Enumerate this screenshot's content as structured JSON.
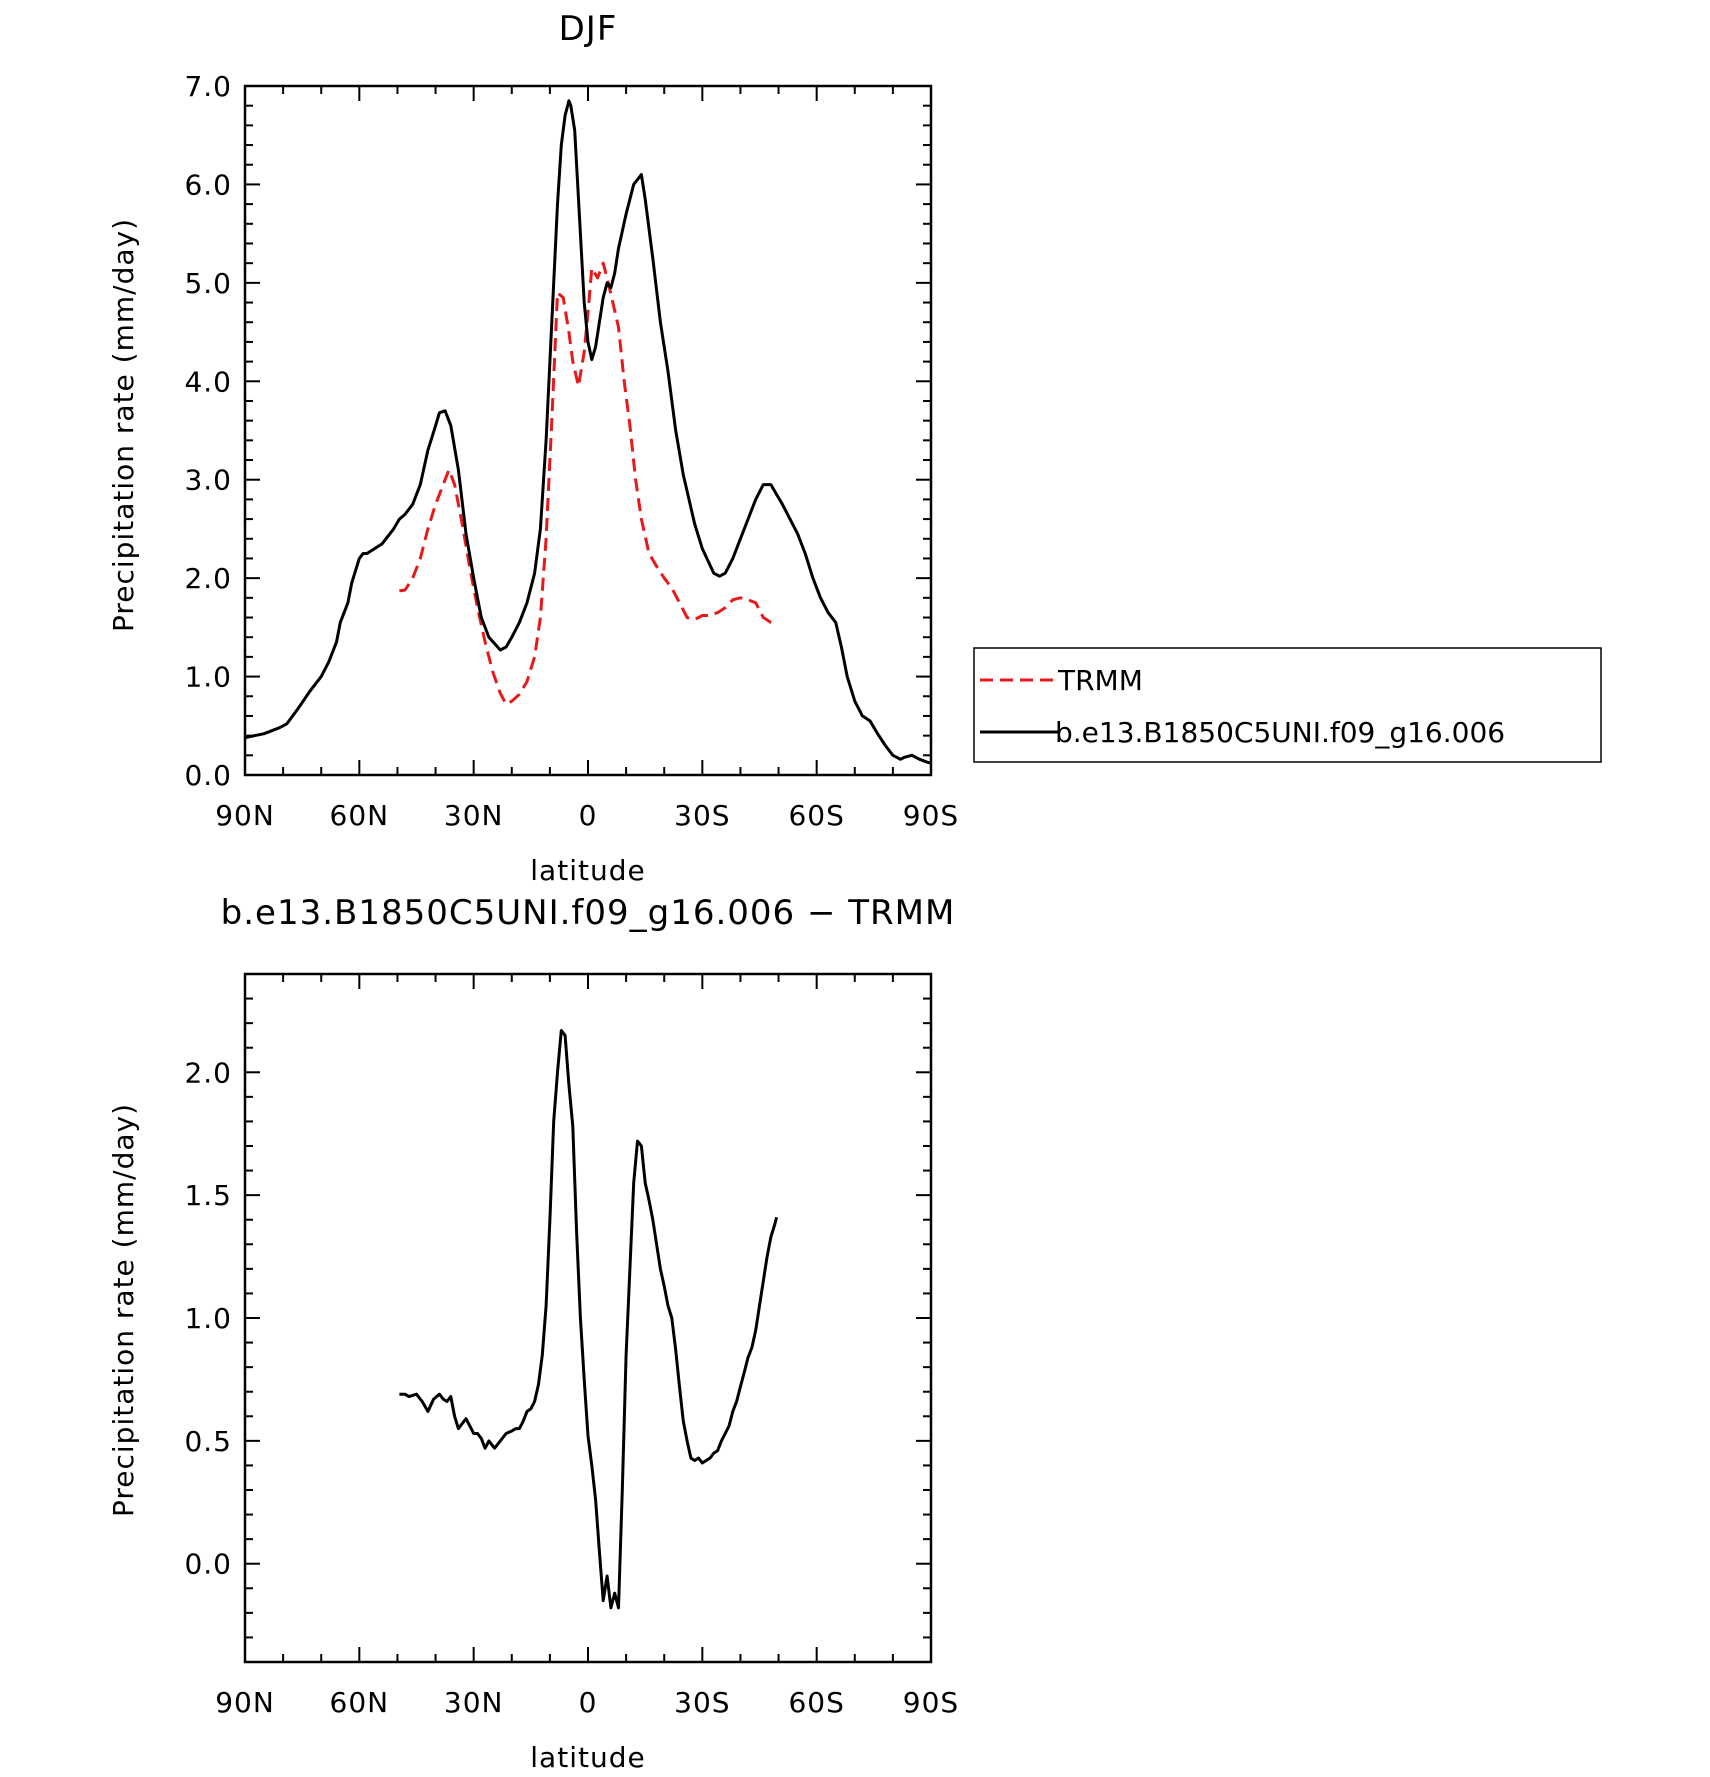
{
  "chart_data": [
    {
      "type": "line",
      "title": "DJF",
      "xlabel": "latitude",
      "ylabel": "Precipitation rate (mm/day)",
      "xlim": [
        90,
        -90
      ],
      "ylim": [
        0,
        7
      ],
      "x_tick_values": [
        90,
        60,
        30,
        0,
        -30,
        -60,
        -90
      ],
      "x_tick_labels": [
        "90N",
        "60N",
        "30N",
        "0",
        "30S",
        "60S",
        "90S"
      ],
      "y_tick_values": [
        0,
        1,
        2,
        3,
        4,
        5,
        6,
        7
      ],
      "y_tick_labels": [
        "0.0",
        "1.0",
        "2.0",
        "3.0",
        "4.0",
        "5.0",
        "6.0",
        "7.0"
      ],
      "legend_position": "right",
      "series": [
        {
          "name": "TRMM",
          "color": "#e8191b",
          "dash": "dashed",
          "x": [
            49.5,
            48,
            46,
            44,
            42,
            40,
            38,
            36.5,
            35,
            33,
            31,
            29,
            27,
            25,
            23,
            21.5,
            20,
            18,
            16,
            14,
            12.5,
            11,
            9.5,
            8,
            6.5,
            5,
            4,
            2.5,
            1,
            0,
            -1,
            -2.5,
            -4,
            -5,
            -6.5,
            -8,
            -9.5,
            -11,
            -12.5,
            -14,
            -16,
            -18,
            -20,
            -22,
            -24,
            -26,
            -28,
            -30,
            -32,
            -34,
            -36,
            -38,
            -40,
            -42,
            -44,
            -46,
            -48,
            -49.5
          ],
          "y": [
            1.87,
            1.88,
            2.0,
            2.2,
            2.5,
            2.75,
            2.95,
            3.1,
            2.95,
            2.55,
            2.1,
            1.7,
            1.35,
            1.05,
            0.83,
            0.72,
            0.75,
            0.82,
            0.95,
            1.2,
            1.6,
            2.4,
            3.6,
            4.9,
            4.85,
            4.5,
            4.2,
            3.95,
            4.3,
            4.7,
            5.15,
            5.05,
            5.2,
            5.05,
            4.8,
            4.55,
            4.0,
            3.55,
            3.0,
            2.6,
            2.25,
            2.12,
            2.0,
            1.9,
            1.75,
            1.6,
            1.58,
            1.62,
            1.62,
            1.65,
            1.7,
            1.78,
            1.8,
            1.78,
            1.75,
            1.6,
            1.55,
            1.55
          ]
        },
        {
          "name": "b.e13.B1850C5UNI.f09_g16.006",
          "color": "#000000",
          "dash": "solid",
          "x": [
            90,
            85,
            81,
            79,
            76,
            73,
            70,
            68,
            66,
            65,
            63,
            62,
            60,
            59,
            58,
            56,
            54,
            51,
            49.5,
            48,
            46,
            44,
            42,
            40,
            39,
            37.5,
            36,
            34,
            32,
            30,
            28,
            26,
            23,
            21.5,
            20,
            18,
            16,
            14,
            12.5,
            11,
            10,
            9,
            8,
            7,
            6,
            5,
            4.5,
            3.5,
            2,
            1,
            0,
            -1,
            -2,
            -3,
            -4,
            -5,
            -6,
            -7,
            -8,
            -10,
            -12,
            -14,
            -15,
            -17,
            -19,
            -21,
            -23,
            -25,
            -28,
            -30,
            -33,
            -34.5,
            -36,
            -38,
            -40,
            -42,
            -44,
            -46,
            -48,
            -49.5,
            -51,
            -53,
            -55,
            -57,
            -59,
            -61,
            -63,
            -65,
            -66.5,
            -68,
            -70,
            -72,
            -74,
            -76,
            -78,
            -80,
            -82,
            -83,
            -85,
            -87,
            -89,
            -90
          ],
          "y": [
            0.38,
            0.42,
            0.48,
            0.52,
            0.68,
            0.85,
            1.0,
            1.15,
            1.35,
            1.55,
            1.75,
            1.95,
            2.2,
            2.25,
            2.25,
            2.3,
            2.35,
            2.5,
            2.6,
            2.65,
            2.75,
            2.95,
            3.3,
            3.55,
            3.68,
            3.7,
            3.55,
            3.1,
            2.45,
            2.0,
            1.6,
            1.4,
            1.27,
            1.3,
            1.4,
            1.55,
            1.75,
            2.05,
            2.5,
            3.4,
            4.2,
            5.0,
            5.8,
            6.4,
            6.7,
            6.85,
            6.8,
            6.55,
            5.5,
            4.8,
            4.4,
            4.22,
            4.35,
            4.6,
            4.85,
            5.0,
            4.95,
            5.1,
            5.35,
            5.7,
            6.0,
            6.1,
            5.85,
            5.25,
            4.6,
            4.1,
            3.5,
            3.05,
            2.55,
            2.3,
            2.05,
            2.02,
            2.05,
            2.2,
            2.4,
            2.6,
            2.8,
            2.95,
            2.95,
            2.85,
            2.75,
            2.6,
            2.45,
            2.25,
            2.0,
            1.8,
            1.65,
            1.55,
            1.3,
            1.0,
            0.75,
            0.6,
            0.55,
            0.42,
            0.3,
            0.2,
            0.16,
            0.18,
            0.2,
            0.16,
            0.13,
            0.12
          ]
        }
      ]
    },
    {
      "type": "line",
      "title": "b.e13.B1850C5UNI.f09_g16.006 − TRMM",
      "xlabel": "latitude",
      "ylabel": "Precipitation rate (mm/day)",
      "xlim": [
        90,
        -90
      ],
      "ylim": [
        -0.4,
        2.4
      ],
      "x_tick_values": [
        90,
        60,
        30,
        0,
        -30,
        -60,
        -90
      ],
      "x_tick_labels": [
        "90N",
        "60N",
        "30N",
        "0",
        "30S",
        "60S",
        "90S"
      ],
      "y_tick_values": [
        0,
        0.5,
        1,
        1.5,
        2
      ],
      "y_tick_labels": [
        "0.0",
        "0.5",
        "1.0",
        "1.5",
        "2.0"
      ],
      "series": [
        {
          "color": "#000000",
          "dash": "solid",
          "x": [
            49.5,
            48,
            47,
            45,
            43.5,
            42,
            40.5,
            39,
            38,
            37,
            36,
            35,
            34,
            33,
            32,
            31,
            30,
            29,
            28,
            27,
            26,
            25,
            24.5,
            23,
            21.5,
            20,
            19,
            18,
            17,
            16,
            15,
            14,
            13,
            12,
            11,
            10,
            9,
            8,
            7,
            6,
            5,
            4,
            3,
            2,
            1,
            0,
            -1,
            -2,
            -3,
            -4,
            -5,
            -6,
            -7,
            -8,
            -9,
            -10,
            -11,
            -12,
            -13,
            -14,
            -15,
            -16,
            -17,
            -18,
            -19,
            -20,
            -21,
            -22,
            -23,
            -24,
            -25,
            -26,
            -27,
            -28,
            -29,
            -30,
            -31,
            -32,
            -33,
            -34,
            -35,
            -36,
            -37,
            -38,
            -39,
            -40,
            -41,
            -42,
            -43,
            -44,
            -45,
            -46,
            -47,
            -48,
            -49,
            -49.5
          ],
          "y": [
            0.69,
            0.69,
            0.68,
            0.69,
            0.66,
            0.62,
            0.67,
            0.69,
            0.67,
            0.66,
            0.68,
            0.6,
            0.55,
            0.57,
            0.59,
            0.56,
            0.53,
            0.53,
            0.51,
            0.47,
            0.5,
            0.48,
            0.47,
            0.5,
            0.53,
            0.54,
            0.55,
            0.55,
            0.58,
            0.62,
            0.63,
            0.66,
            0.73,
            0.85,
            1.05,
            1.4,
            1.8,
            2.0,
            2.17,
            2.15,
            1.95,
            1.78,
            1.35,
            1.0,
            0.75,
            0.52,
            0.4,
            0.26,
            0.05,
            -0.15,
            -0.05,
            -0.18,
            -0.12,
            -0.18,
            0.3,
            0.85,
            1.2,
            1.55,
            1.72,
            1.7,
            1.55,
            1.48,
            1.4,
            1.3,
            1.2,
            1.13,
            1.05,
            1.0,
            0.87,
            0.72,
            0.58,
            0.5,
            0.43,
            0.42,
            0.43,
            0.41,
            0.42,
            0.43,
            0.45,
            0.46,
            0.5,
            0.53,
            0.56,
            0.62,
            0.66,
            0.72,
            0.78,
            0.84,
            0.88,
            0.95,
            1.05,
            1.15,
            1.25,
            1.33,
            1.38,
            1.41
          ]
        }
      ]
    }
  ]
}
